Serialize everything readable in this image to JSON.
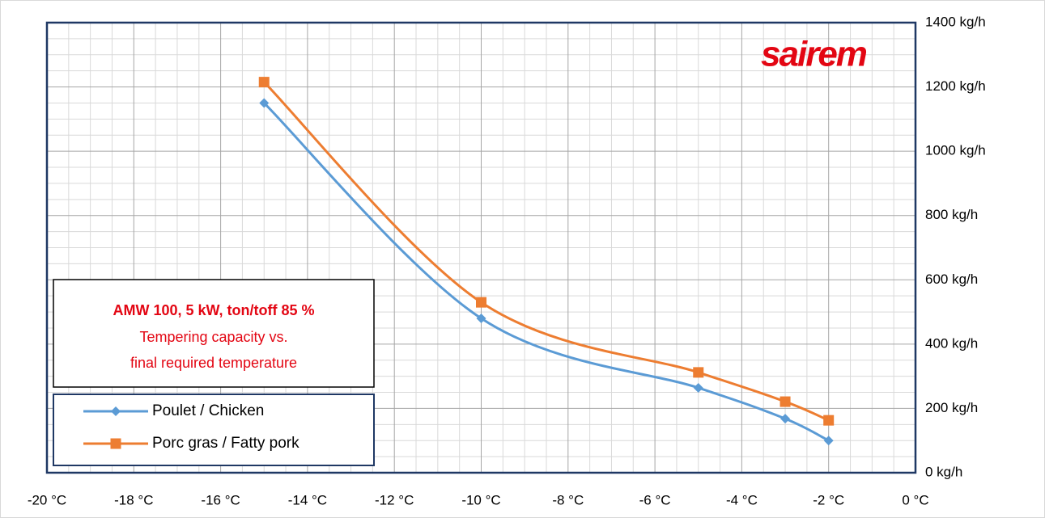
{
  "chart_data": {
    "type": "line",
    "logo": "sairem",
    "annotation": [
      "AMW 100, 5 kW, ton/toff 85 %",
      "Tempering capacity vs.",
      "final required temperature"
    ],
    "xlim": [
      -20,
      0
    ],
    "xticks": [
      {
        "value": -20,
        "label": "-20 °C"
      },
      {
        "value": -18,
        "label": "-18 °C"
      },
      {
        "value": -16,
        "label": "-16 °C"
      },
      {
        "value": -14,
        "label": "-14 °C"
      },
      {
        "value": -12,
        "label": "-12 °C"
      },
      {
        "value": -10,
        "label": "-10 °C"
      },
      {
        "value": -8,
        "label": "-8 °C"
      },
      {
        "value": -6,
        "label": "-6 °C"
      },
      {
        "value": -4,
        "label": "-4 °C"
      },
      {
        "value": -2,
        "label": "-2 °C"
      },
      {
        "value": 0,
        "label": "0 °C"
      }
    ],
    "ylim": [
      0,
      1400
    ],
    "yticks": [
      {
        "value": 0,
        "label": "0 kg/h"
      },
      {
        "value": 200,
        "label": "200 kg/h"
      },
      {
        "value": 400,
        "label": "400 kg/h"
      },
      {
        "value": 600,
        "label": "600 kg/h"
      },
      {
        "value": 800,
        "label": "800 kg/h"
      },
      {
        "value": 1000,
        "label": "1000 kg/h"
      },
      {
        "value": 1200,
        "label": "1200 kg/h"
      },
      {
        "value": 1400,
        "label": "1400 kg/h"
      }
    ],
    "grid": true,
    "minor_grid": 4,
    "x": [
      -15,
      -10,
      -5,
      -3,
      -2
    ],
    "series": [
      {
        "name": "Poulet / Chicken",
        "color": "#5b9bd5",
        "marker": "diamond",
        "values": [
          1150,
          480,
          264,
          168,
          100
        ]
      },
      {
        "name": "Porc gras / Fatty pork",
        "color": "#ed7d31",
        "marker": "square",
        "values": [
          1215,
          530,
          312,
          221,
          163
        ]
      }
    ]
  }
}
